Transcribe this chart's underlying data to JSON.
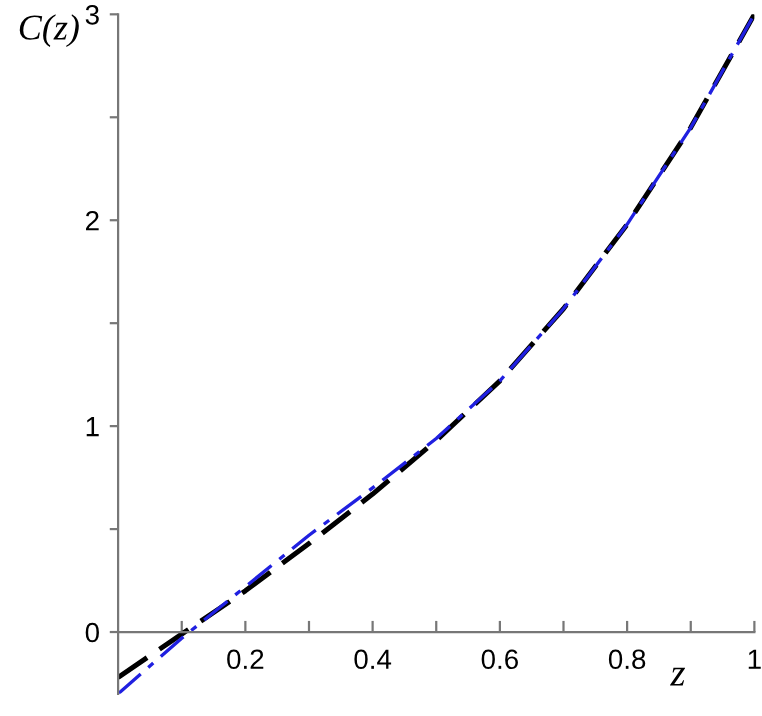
{
  "chart_data": {
    "type": "line",
    "xlabel": "z",
    "ylabel": "C(z)",
    "xlim": [
      0,
      1
    ],
    "ylim": [
      -0.3,
      3
    ],
    "xticks": [
      {
        "value": 0.1,
        "label": null
      },
      0.2,
      {
        "value": 0.3,
        "label": null
      },
      0.4,
      {
        "value": 0.5,
        "label": null
      },
      0.6,
      {
        "value": 0.7,
        "label": null
      },
      0.8,
      {
        "value": 0.9,
        "label": null
      },
      1
    ],
    "yticks": [
      0,
      {
        "value": 0.5,
        "label": null
      },
      1,
      {
        "value": 1.5,
        "label": null
      },
      2,
      {
        "value": 2.5,
        "label": null
      },
      3
    ],
    "grid": false,
    "legend": false,
    "series": [
      {
        "color": "#000000",
        "line_style": "dashed",
        "x": [
          0,
          0.1,
          0.2,
          0.3,
          0.4,
          0.5,
          0.6,
          0.7,
          0.8,
          0.9,
          1.0
        ],
        "values": [
          -0.22,
          -0.01,
          0.2,
          0.43,
          0.67,
          0.93,
          1.22,
          1.57,
          1.98,
          2.45,
          3.0
        ]
      },
      {
        "color": "#2020e0",
        "line_style": "dashed",
        "x": [
          0,
          0.1,
          0.2,
          0.3,
          0.4,
          0.5,
          0.6,
          0.7,
          0.8,
          0.9,
          1.0
        ],
        "values": [
          -0.3,
          -0.03,
          0.22,
          0.47,
          0.7,
          0.94,
          1.22,
          1.57,
          1.98,
          2.45,
          3.0
        ]
      }
    ]
  }
}
